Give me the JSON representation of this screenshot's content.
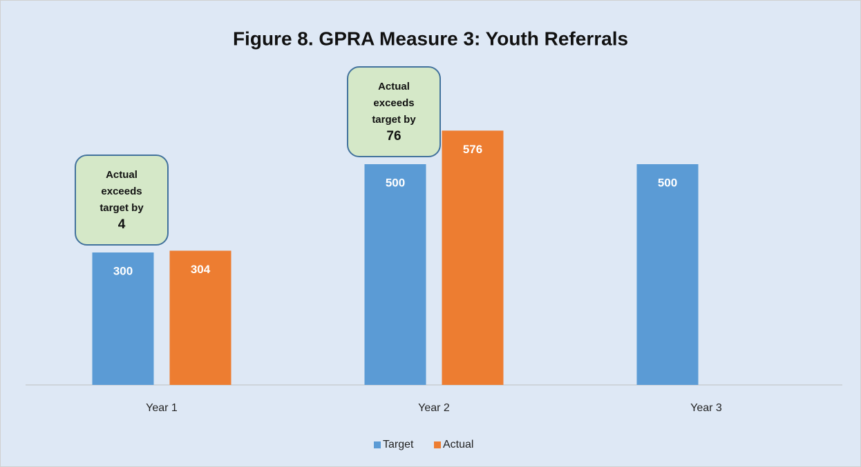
{
  "chart_data": {
    "type": "bar",
    "title": "Figure 8. GPRA Measure 3: Youth Referrals",
    "categories": [
      "Year 1",
      "Year 2",
      "Year 3"
    ],
    "series": [
      {
        "name": "Target",
        "color": "#5b9bd5",
        "values": [
          300,
          500,
          500
        ]
      },
      {
        "name": "Actual",
        "color": "#ed7d31",
        "values": [
          304,
          576,
          null
        ]
      }
    ],
    "annotations": [
      {
        "text": "Actual exceeds target by",
        "value": 4
      },
      {
        "text": "Actual exceeds target by",
        "value": 76
      }
    ],
    "ylim": [
      0,
      700
    ],
    "legend": "bottom"
  }
}
